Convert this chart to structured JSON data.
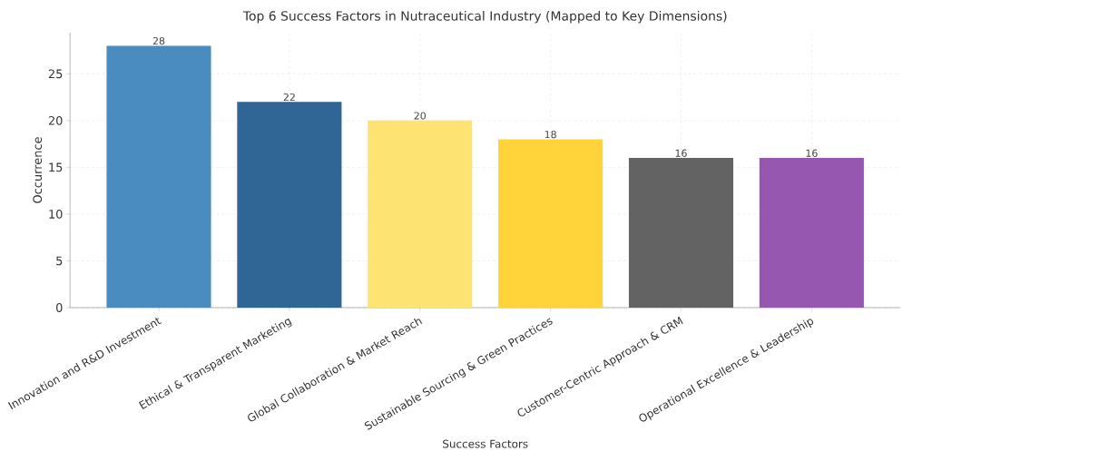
{
  "chart_data": {
    "type": "bar",
    "title": "Top 6 Success Factors in Nutraceutical Industry (Mapped to Key Dimensions)",
    "xlabel": "Success Factors",
    "ylabel": "Occurrence",
    "categories": [
      "Innovation and R&D Investment",
      "Ethical & Transparent Marketing",
      "Global Collaboration & Market Reach",
      "Sustainable Sourcing & Green Practices",
      "Customer-Centric Approach & CRM",
      "Operational Excellence & Leadership"
    ],
    "values": [
      28,
      22,
      20,
      18,
      16,
      16
    ],
    "colors": [
      "#4a8bc0",
      "#2f6695",
      "#fde372",
      "#fed43a",
      "#636363",
      "#9657b0"
    ],
    "ylim": [
      0,
      29.4
    ],
    "yticks": [
      0,
      5,
      10,
      15,
      20,
      25
    ],
    "grid": true,
    "data_labels": true
  }
}
